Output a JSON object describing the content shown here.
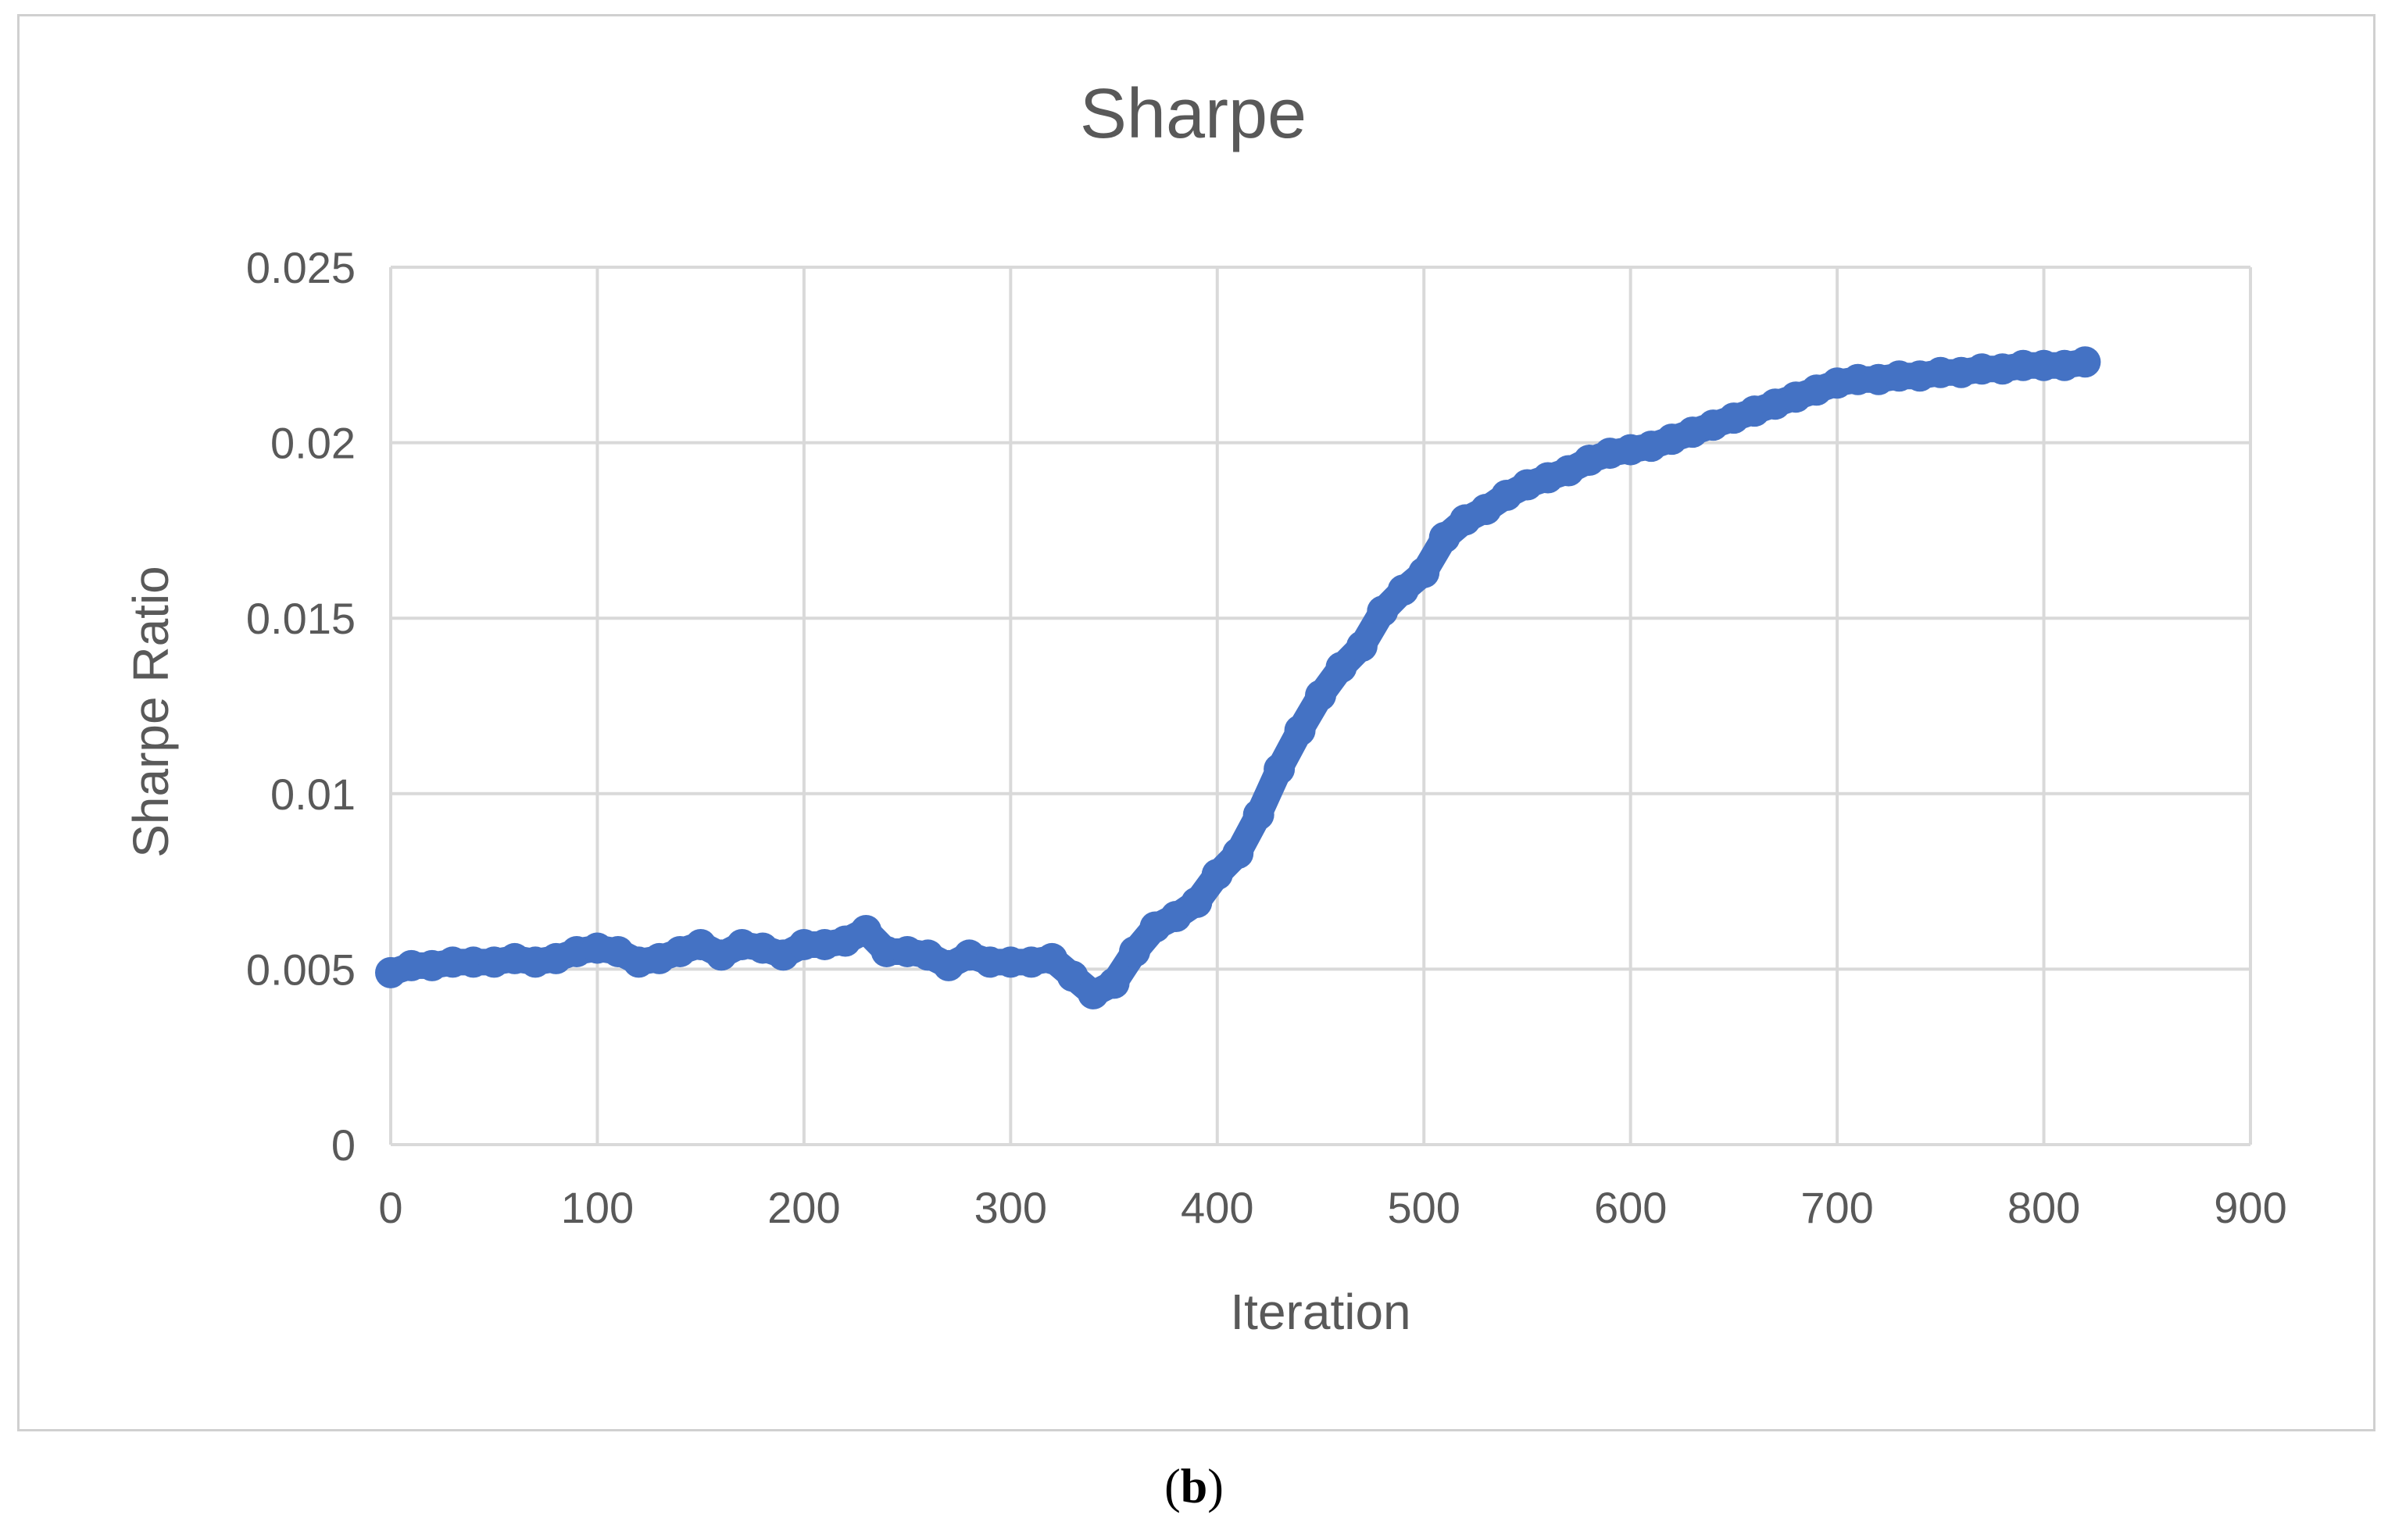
{
  "caption": {
    "open": "(",
    "letter": "b",
    "close": ")"
  },
  "chart_data": {
    "type": "line",
    "title": "Sharpe",
    "xlabel": "Iteration",
    "ylabel": "Sharpe Ratio",
    "xlim": [
      0,
      900
    ],
    "ylim": [
      0,
      0.025
    ],
    "x_ticks": [
      0,
      100,
      200,
      300,
      400,
      500,
      600,
      700,
      800,
      900
    ],
    "y_ticks": [
      0,
      0.005,
      0.01,
      0.015,
      0.02,
      0.025
    ],
    "x_tick_labels": [
      "0",
      "100",
      "200",
      "300",
      "400",
      "500",
      "600",
      "700",
      "800",
      "900"
    ],
    "y_tick_labels": [
      "0",
      "0.005",
      "0.01",
      "0.015",
      "0.02",
      "0.025"
    ],
    "grid": true,
    "legend": "none",
    "series_color": "#4472C4",
    "x": [
      0,
      10,
      20,
      30,
      40,
      50,
      60,
      70,
      80,
      90,
      100,
      110,
      120,
      130,
      140,
      150,
      160,
      170,
      180,
      190,
      200,
      210,
      220,
      230,
      240,
      250,
      260,
      270,
      280,
      290,
      300,
      310,
      320,
      330,
      340,
      350,
      360,
      370,
      380,
      390,
      400,
      410,
      420,
      430,
      440,
      450,
      460,
      470,
      480,
      490,
      500,
      510,
      520,
      530,
      540,
      550,
      560,
      570,
      580,
      590,
      600,
      610,
      620,
      630,
      640,
      650,
      660,
      670,
      680,
      690,
      700,
      710,
      720,
      730,
      740,
      750,
      760,
      770,
      780,
      790,
      800,
      810,
      820
    ],
    "values": [
      0.0049,
      0.0051,
      0.0051,
      0.0052,
      0.0052,
      0.0052,
      0.0053,
      0.0052,
      0.0053,
      0.0055,
      0.0056,
      0.0055,
      0.0052,
      0.0053,
      0.0055,
      0.0057,
      0.0054,
      0.0057,
      0.0056,
      0.0054,
      0.0057,
      0.0057,
      0.0058,
      0.0061,
      0.0055,
      0.0055,
      0.0054,
      0.0051,
      0.0054,
      0.0052,
      0.0052,
      0.0052,
      0.0053,
      0.0048,
      0.0043,
      0.0046,
      0.0055,
      0.0062,
      0.0065,
      0.0069,
      0.0077,
      0.0083,
      0.0094,
      0.0107,
      0.0118,
      0.0128,
      0.0136,
      0.0142,
      0.0152,
      0.0158,
      0.0163,
      0.0173,
      0.0178,
      0.0181,
      0.0185,
      0.0188,
      0.019,
      0.0192,
      0.0195,
      0.0197,
      0.0198,
      0.0199,
      0.0201,
      0.0203,
      0.0205,
      0.0207,
      0.0209,
      0.0211,
      0.0213,
      0.0215,
      0.0217,
      0.0218,
      0.0218,
      0.0219,
      0.0219,
      0.022,
      0.022,
      0.0221,
      0.0221,
      0.0222,
      0.0222,
      0.0222,
      0.0223
    ]
  }
}
